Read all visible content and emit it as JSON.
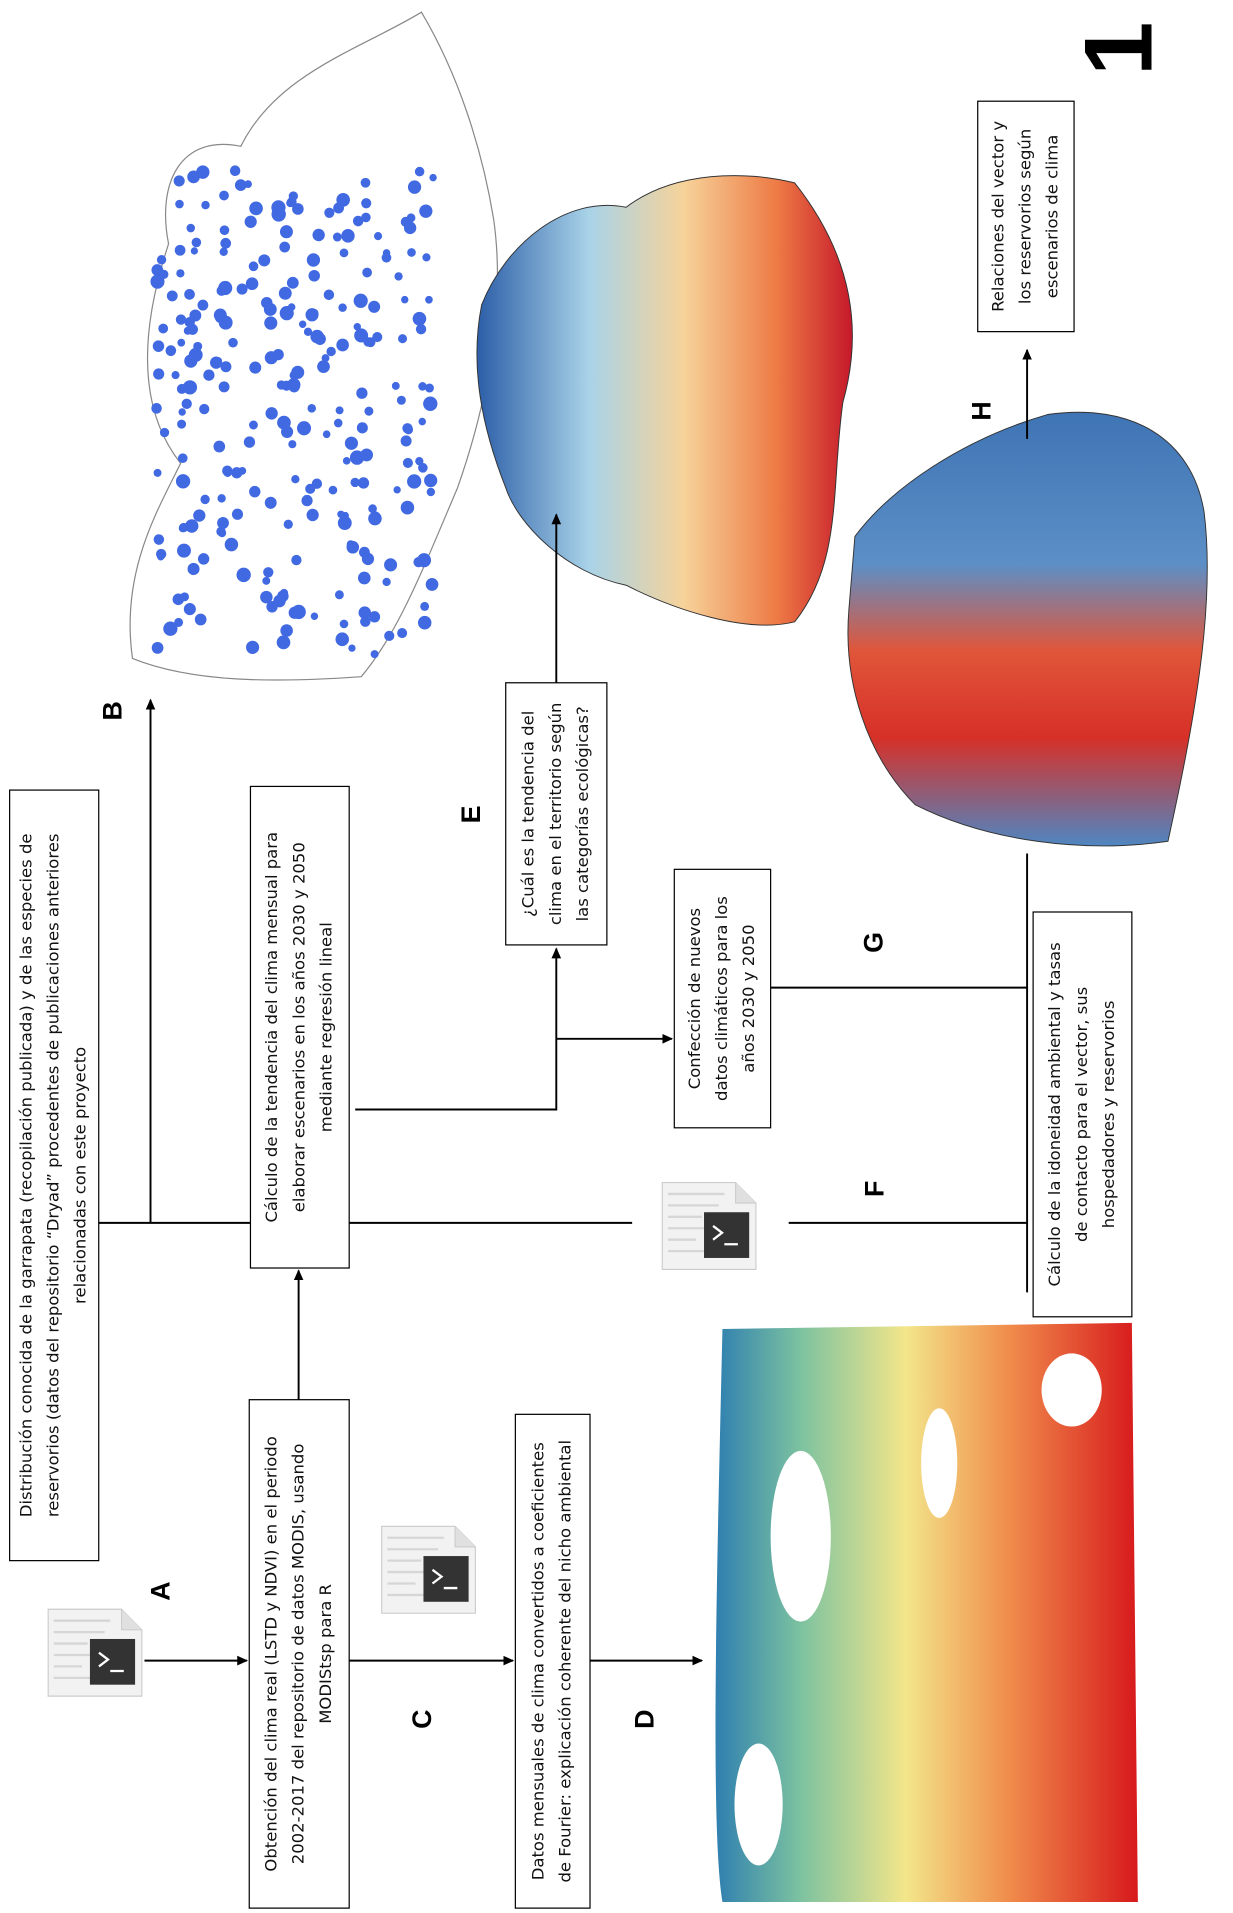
{
  "figure_number": "1",
  "step_labels": [
    "A",
    "B",
    "C",
    "D",
    "E",
    "F",
    "G",
    "H"
  ],
  "boxes": [
    {
      "lines": [
        "Distribución conocida de la garrapata (recopilación publicada) y de las especies de",
        "reservorios (datos del repositorio “Dryad” procedentes de publicaciones anteriores",
        "relacionadas con este proyecto"
      ]
    },
    {
      "lines": [
        "Obtención del clima real (LSTD y NDVI) en el periodo",
        "2002-2017 del repositorio de datos MODIS, usando",
        "MODIStsp para R"
      ]
    },
    {
      "lines": [
        "Cálculo de la tendencia del clima mensual para",
        "elaborar escenarios en los años 2030 y 2050",
        "mediante regresión lineal"
      ]
    },
    {
      "lines": [
        "Datos mensuales de clima convertidos a coeficientes",
        "de Fourier: explicación coherente del nicho ambiental"
      ]
    },
    {
      "lines": [
        "¿Cuál es la tendencia del",
        "clima en el territorio según",
        "las categorías ecológicas?"
      ]
    },
    {
      "lines": [
        "Confección de nuevos",
        "datos climáticos para los",
        "años 2030 y 2050"
      ]
    },
    {
      "lines": [
        "Cálculo de la idoneidad ambiental y tasas",
        "de contacto para el vector, sus",
        "hospedadores y reservorios"
      ]
    },
    {
      "lines": [
        "Relaciones del vector y",
        "los reservorios según",
        "escenarios de clima"
      ]
    }
  ]
}
